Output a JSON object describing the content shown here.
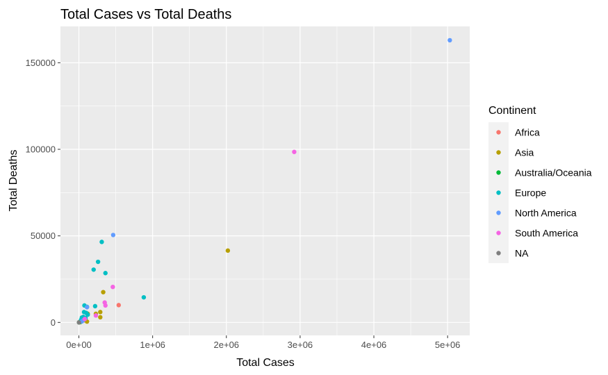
{
  "chart_data": {
    "type": "scatter",
    "title": "Total Cases vs Total Deaths",
    "xlabel": "Total Cases",
    "ylabel": "Total Deaths",
    "xlim": [
      -250000,
      5300000
    ],
    "ylim": [
      -7500,
      171000
    ],
    "x_ticks": [
      0,
      1000000,
      2000000,
      3000000,
      4000000,
      5000000
    ],
    "x_tick_labels": [
      "0e+00",
      "1e+06",
      "2e+06",
      "3e+06",
      "4e+06",
      "5e+06"
    ],
    "y_ticks": [
      0,
      50000,
      100000,
      150000
    ],
    "y_tick_labels": [
      "0",
      "50000",
      "100000",
      "150000"
    ],
    "grid": true,
    "legend_position": "right",
    "legend_title": "Continent",
    "background_color": "#EBEBEB",
    "series": [
      {
        "name": "Africa",
        "color": "#F8766D",
        "points": [
          [
            540000,
            10000
          ],
          [
            10000,
            300
          ],
          [
            25000,
            600
          ],
          [
            5000,
            100
          ],
          [
            40000,
            900
          ],
          [
            15000,
            250
          ]
        ]
      },
      {
        "name": "Asia",
        "color": "#B79F00",
        "points": [
          [
            2020000,
            41500
          ],
          [
            330000,
            17500
          ],
          [
            290000,
            6000
          ],
          [
            290000,
            3000
          ],
          [
            120000,
            5000
          ],
          [
            110000,
            500
          ],
          [
            60000,
            1500
          ],
          [
            30000,
            700
          ],
          [
            20000,
            300
          ],
          [
            80000,
            1200
          ],
          [
            230000,
            5000
          ]
        ]
      },
      {
        "name": "Australia/Oceania",
        "color": "#00BA38",
        "points": [
          [
            20000,
            250
          ],
          [
            2000,
            20
          ]
        ]
      },
      {
        "name": "Europe",
        "color": "#00BFC4",
        "points": [
          [
            310000,
            46500
          ],
          [
            260000,
            35000
          ],
          [
            200000,
            30500
          ],
          [
            360000,
            28500
          ],
          [
            880000,
            14500
          ],
          [
            75000,
            9800
          ],
          [
            110000,
            9000
          ],
          [
            220000,
            9400
          ],
          [
            70000,
            6000
          ],
          [
            40000,
            2800
          ],
          [
            60000,
            3200
          ],
          [
            90000,
            2500
          ],
          [
            30000,
            1500
          ],
          [
            100000,
            5500
          ],
          [
            120000,
            4500
          ]
        ]
      },
      {
        "name": "North America",
        "color": "#619CFF",
        "points": [
          [
            5030000,
            163000
          ],
          [
            465000,
            50500
          ],
          [
            110000,
            8800
          ],
          [
            60000,
            1300
          ],
          [
            40000,
            600
          ]
        ]
      },
      {
        "name": "South America",
        "color": "#F564E3",
        "points": [
          [
            2920000,
            98500
          ],
          [
            460000,
            20500
          ],
          [
            350000,
            11500
          ],
          [
            360000,
            9800
          ],
          [
            230000,
            4000
          ],
          [
            80000,
            2000
          ]
        ]
      },
      {
        "name": "NA",
        "color": "#7F7F7F",
        "points": [
          [
            1000,
            10
          ]
        ]
      }
    ]
  }
}
